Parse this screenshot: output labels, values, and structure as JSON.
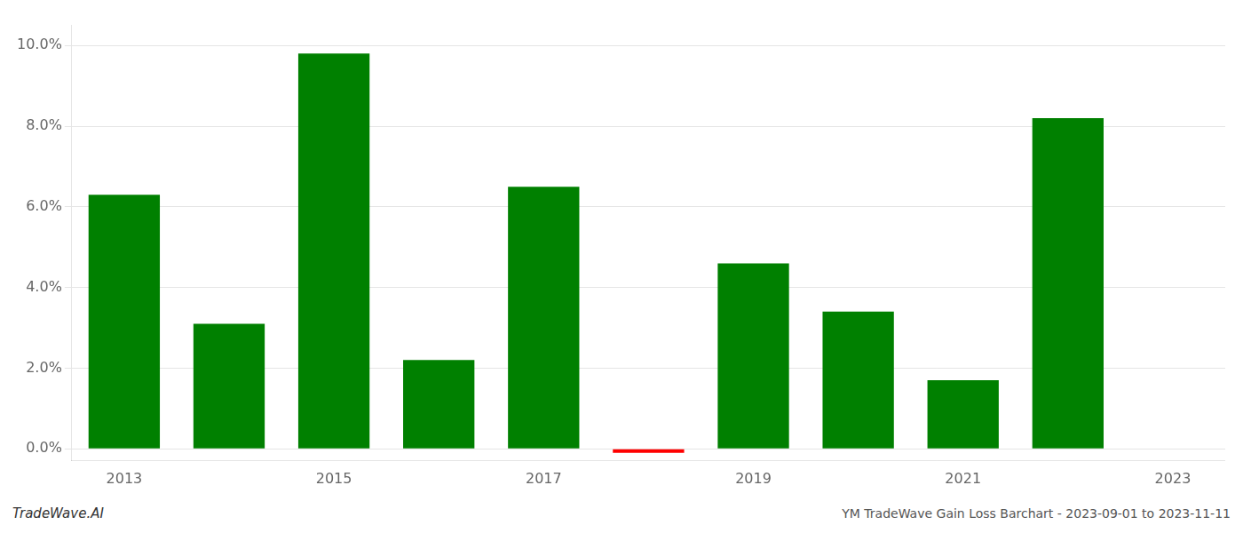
{
  "chart_data": {
    "type": "bar",
    "categories": [
      "2013",
      null,
      "2015",
      null,
      "2017",
      null,
      "2019",
      null,
      "2021",
      null,
      "2023"
    ],
    "values": [
      0.063,
      0.031,
      0.098,
      0.022,
      0.065,
      -0.001,
      0.046,
      0.034,
      0.017,
      0.082,
      0.0
    ],
    "colors": [
      "#008000",
      "#008000",
      "#008000",
      "#008000",
      "#008000",
      "#ff0000",
      "#008000",
      "#008000",
      "#008000",
      "#008000",
      "#008000"
    ],
    "ylim": [
      -0.003,
      0.105
    ],
    "yticks": [
      {
        "value": 0.0,
        "label": "0.0%"
      },
      {
        "value": 0.02,
        "label": "2.0%"
      },
      {
        "value": 0.04,
        "label": "4.0%"
      },
      {
        "value": 0.06,
        "label": "6.0%"
      },
      {
        "value": 0.08,
        "label": "8.0%"
      },
      {
        "value": 0.1,
        "label": "10.0%"
      }
    ],
    "grid": true,
    "annotations": [
      "TradeWave.AI",
      "YM TradeWave Gain Loss Barchart - 2023-09-01 to 2023-11-11"
    ]
  }
}
